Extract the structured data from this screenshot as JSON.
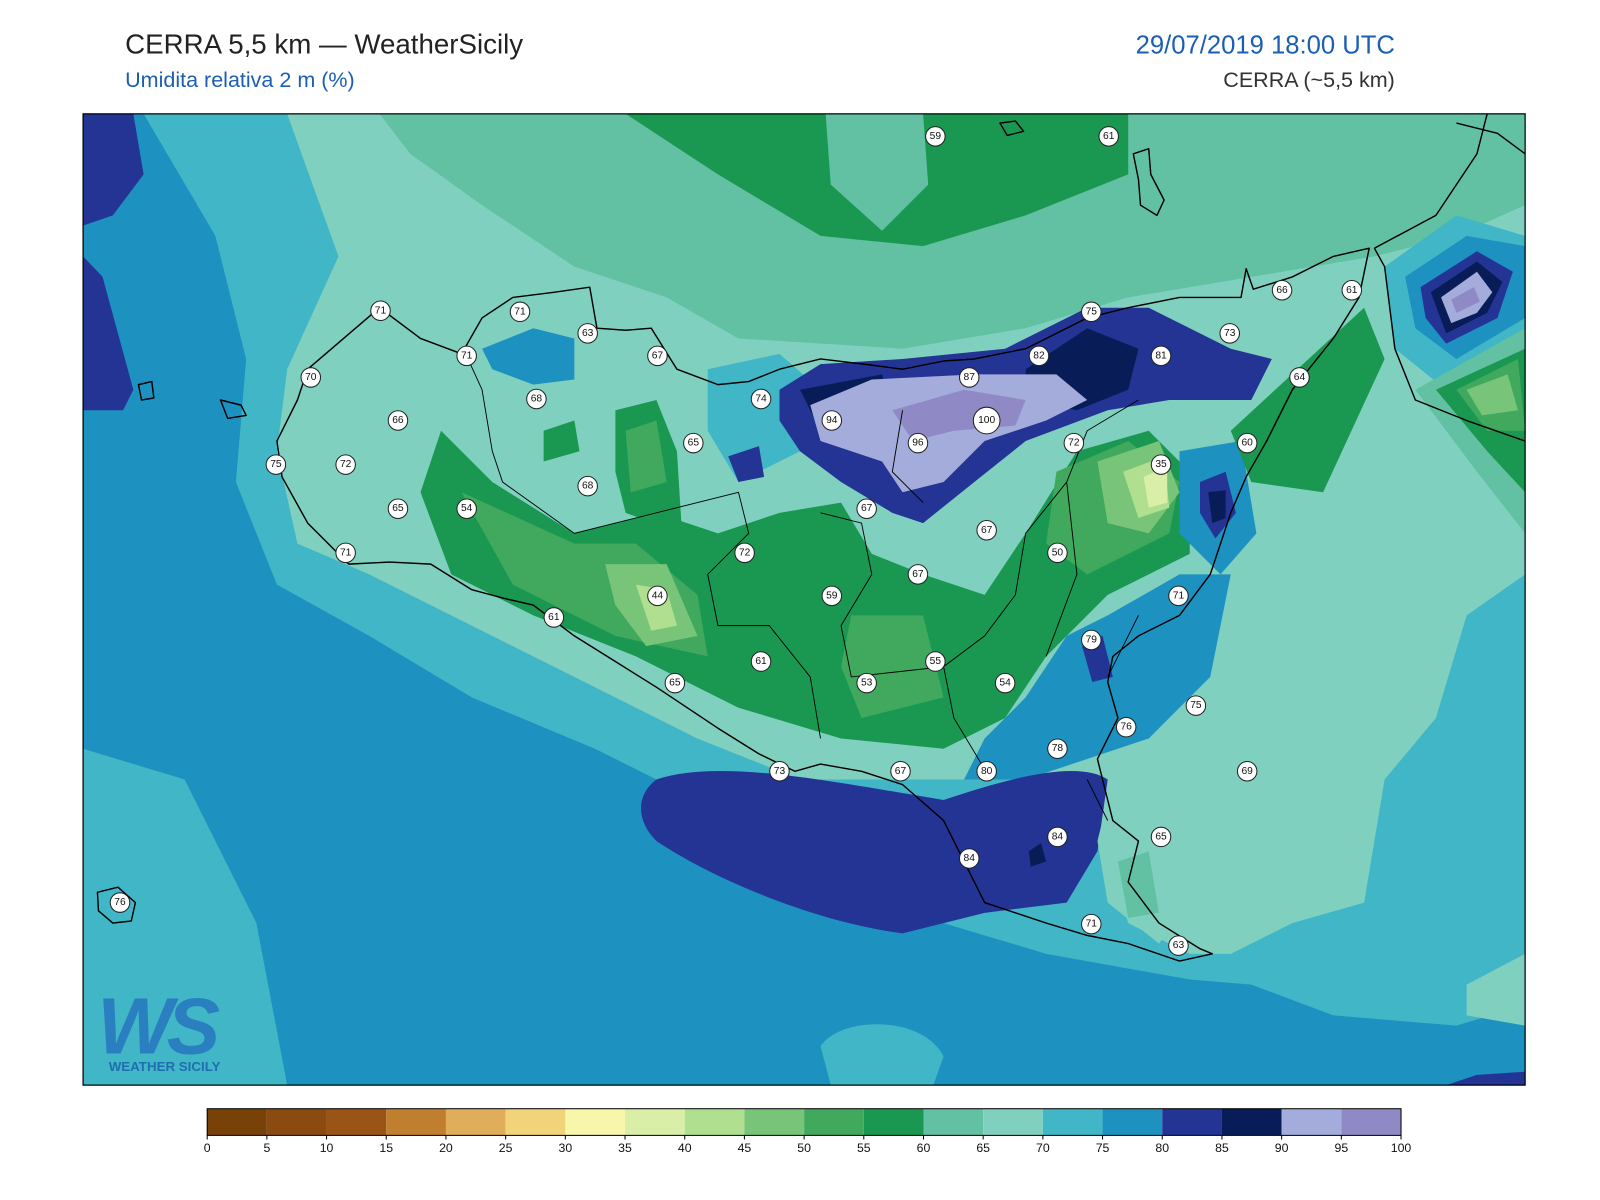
{
  "header": {
    "title": "CERRA 5,5 km — WeatherSicily",
    "subtitle": "Umidita relativa 2 m (%)",
    "datetime": "29/07/2019 18:00 UTC",
    "model": "CERRA (~5,5 km)"
  },
  "colorbar": {
    "ticks": [
      0,
      5,
      10,
      15,
      20,
      25,
      30,
      35,
      40,
      45,
      50,
      55,
      60,
      65,
      70,
      75,
      80,
      85,
      90,
      95,
      100
    ],
    "colors": [
      "#774108",
      "#8a4a10",
      "#9a5416",
      "#c07f2e",
      "#e0ad5a",
      "#f1d47a",
      "#f8f6aa",
      "#d9eea7",
      "#b0e08f",
      "#78c579",
      "#41a95e",
      "#1a9851",
      "#62c1a2",
      "#80d0c0",
      "#41b6c6",
      "#1d91c0",
      "#233494",
      "#081d58",
      "#a4acdc",
      "#8f8ac6"
    ]
  },
  "stations": [
    59,
    61,
    71,
    71,
    63,
    71,
    67,
    75,
    66,
    61,
    73,
    82,
    81,
    70,
    68,
    74,
    87,
    64,
    66,
    94,
    100,
    65,
    96,
    72,
    60,
    75,
    72,
    35,
    68,
    65,
    54,
    67,
    67,
    71,
    72,
    50,
    67,
    44,
    59,
    71,
    61,
    79,
    61,
    55,
    53,
    54,
    65,
    75,
    76,
    78,
    73,
    67,
    80,
    69,
    84,
    65,
    84,
    76,
    71,
    63
  ],
  "logo": {
    "mark": "WS",
    "name": "WEATHER SICILY"
  }
}
